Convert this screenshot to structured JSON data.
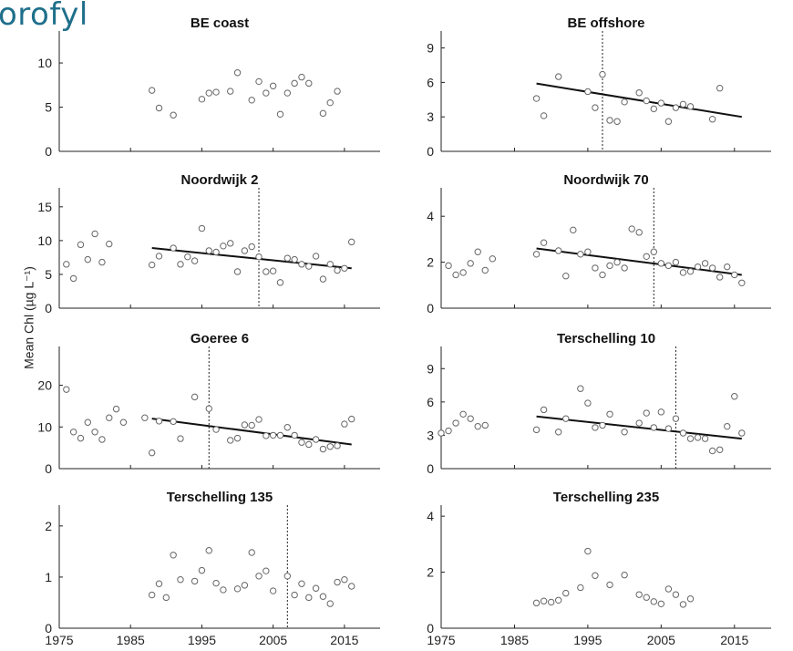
{
  "page_title": "orofyl",
  "ylabel": "Mean Chl (µg L⁻¹)",
  "chart_data": [
    {
      "type": "scatter",
      "title": "BE coast",
      "xlim": [
        1975,
        2020
      ],
      "ylim": [
        0,
        13
      ],
      "xticks": [
        1975,
        1985,
        1995,
        2005,
        2015
      ],
      "yticks": [
        0,
        5,
        10
      ],
      "points": [
        [
          1988,
          6.9
        ],
        [
          1989,
          4.9
        ],
        [
          1991,
          4.1
        ],
        [
          1995,
          5.9
        ],
        [
          1996,
          6.6
        ],
        [
          1997,
          6.7
        ],
        [
          1999,
          6.8
        ],
        [
          2000,
          8.9
        ],
        [
          2002,
          5.8
        ],
        [
          2003,
          7.9
        ],
        [
          2004,
          6.6
        ],
        [
          2005,
          7.4
        ],
        [
          2006,
          4.2
        ],
        [
          2007,
          6.6
        ],
        [
          2008,
          7.7
        ],
        [
          2009,
          8.4
        ],
        [
          2010,
          7.7
        ],
        [
          2012,
          4.3
        ],
        [
          2013,
          5.5
        ],
        [
          2014,
          6.8
        ]
      ],
      "trend": null,
      "breakpoint": null
    },
    {
      "type": "scatter",
      "title": "BE offshore",
      "xlim": [
        1975,
        2020
      ],
      "ylim": [
        0,
        10
      ],
      "xticks": [
        1975,
        1985,
        1995,
        2005,
        2015
      ],
      "yticks": [
        0,
        3,
        6,
        9
      ],
      "points": [
        [
          1988,
          4.6
        ],
        [
          1989,
          3.1
        ],
        [
          1991,
          6.5
        ],
        [
          1995,
          5.2
        ],
        [
          1996,
          3.8
        ],
        [
          1997,
          6.7
        ],
        [
          1998,
          2.7
        ],
        [
          1999,
          2.6
        ],
        [
          2000,
          4.3
        ],
        [
          2002,
          5.1
        ],
        [
          2003,
          4.4
        ],
        [
          2004,
          3.7
        ],
        [
          2005,
          4.2
        ],
        [
          2006,
          2.6
        ],
        [
          2007,
          3.8
        ],
        [
          2008,
          4.1
        ],
        [
          2009,
          3.9
        ],
        [
          2012,
          2.8
        ],
        [
          2013,
          5.5
        ]
      ],
      "trend": [
        [
          1988,
          5.9
        ],
        [
          2016,
          3.0
        ]
      ],
      "breakpoint": 1997
    },
    {
      "type": "scatter",
      "title": "Noordwijk 2",
      "xlim": [
        1975,
        2020
      ],
      "ylim": [
        0,
        17
      ],
      "xticks": [
        1975,
        1985,
        1995,
        2005,
        2015
      ],
      "yticks": [
        0,
        5,
        10,
        15
      ],
      "points": [
        [
          1976,
          6.5
        ],
        [
          1977,
          4.4
        ],
        [
          1978,
          9.4
        ],
        [
          1979,
          7.2
        ],
        [
          1980,
          11.0
        ],
        [
          1981,
          6.8
        ],
        [
          1982,
          9.5
        ],
        [
          1988,
          6.4
        ],
        [
          1989,
          7.7
        ],
        [
          1991,
          8.9
        ],
        [
          1992,
          6.5
        ],
        [
          1993,
          7.6
        ],
        [
          1994,
          7.0
        ],
        [
          1995,
          11.8
        ],
        [
          1996,
          8.5
        ],
        [
          1997,
          8.3
        ],
        [
          1998,
          9.2
        ],
        [
          1999,
          9.6
        ],
        [
          2000,
          5.4
        ],
        [
          2001,
          8.5
        ],
        [
          2002,
          9.1
        ],
        [
          2003,
          7.6
        ],
        [
          2004,
          5.4
        ],
        [
          2005,
          5.5
        ],
        [
          2006,
          3.8
        ],
        [
          2007,
          7.4
        ],
        [
          2008,
          7.2
        ],
        [
          2009,
          6.5
        ],
        [
          2010,
          6.2
        ],
        [
          2011,
          7.7
        ],
        [
          2012,
          4.3
        ],
        [
          2013,
          6.5
        ],
        [
          2014,
          5.6
        ],
        [
          2015,
          5.9
        ],
        [
          2016,
          9.8
        ]
      ],
      "trend": [
        [
          1988,
          8.9
        ],
        [
          2016,
          5.9
        ]
      ],
      "breakpoint": 2003
    },
    {
      "type": "scatter",
      "title": "Noordwijk 70",
      "xlim": [
        1975,
        2020
      ],
      "ylim": [
        0,
        5
      ],
      "xticks": [
        1975,
        1985,
        1995,
        2005,
        2015
      ],
      "yticks": [
        0,
        2,
        4
      ],
      "points": [
        [
          1976,
          1.85
        ],
        [
          1977,
          1.45
        ],
        [
          1978,
          1.55
        ],
        [
          1979,
          1.95
        ],
        [
          1980,
          2.45
        ],
        [
          1981,
          1.65
        ],
        [
          1982,
          2.15
        ],
        [
          1988,
          2.35
        ],
        [
          1989,
          2.85
        ],
        [
          1991,
          2.5
        ],
        [
          1992,
          1.4
        ],
        [
          1993,
          3.4
        ],
        [
          1994,
          2.35
        ],
        [
          1995,
          2.45
        ],
        [
          1996,
          1.75
        ],
        [
          1997,
          1.45
        ],
        [
          1998,
          1.85
        ],
        [
          1999,
          2.0
        ],
        [
          2000,
          1.75
        ],
        [
          2001,
          3.45
        ],
        [
          2002,
          3.3
        ],
        [
          2003,
          2.25
        ],
        [
          2004,
          2.45
        ],
        [
          2005,
          1.95
        ],
        [
          2006,
          1.85
        ],
        [
          2007,
          2.0
        ],
        [
          2008,
          1.55
        ],
        [
          2009,
          1.6
        ],
        [
          2010,
          1.8
        ],
        [
          2011,
          1.95
        ],
        [
          2012,
          1.75
        ],
        [
          2013,
          1.35
        ],
        [
          2014,
          1.8
        ],
        [
          2015,
          1.45
        ],
        [
          2016,
          1.1
        ]
      ],
      "trend": [
        [
          1988,
          2.6
        ],
        [
          2016,
          1.45
        ]
      ],
      "breakpoint": 2004
    },
    {
      "type": "scatter",
      "title": "Goeree 6",
      "xlim": [
        1975,
        2020
      ],
      "ylim": [
        0,
        28
      ],
      "xticks": [
        1975,
        1985,
        1995,
        2005,
        2015
      ],
      "yticks": [
        0,
        10,
        20
      ],
      "points": [
        [
          1976,
          19.0
        ],
        [
          1977,
          8.8
        ],
        [
          1978,
          7.3
        ],
        [
          1979,
          11.1
        ],
        [
          1980,
          8.8
        ],
        [
          1981,
          7.0
        ],
        [
          1982,
          12.2
        ],
        [
          1983,
          14.3
        ],
        [
          1984,
          11.1
        ],
        [
          1987,
          12.2
        ],
        [
          1988,
          3.8
        ],
        [
          1989,
          11.4
        ],
        [
          1991,
          11.3
        ],
        [
          1992,
          7.2
        ],
        [
          1994,
          17.2
        ],
        [
          1996,
          14.4
        ],
        [
          1997,
          9.4
        ],
        [
          1999,
          6.8
        ],
        [
          2000,
          7.3
        ],
        [
          2001,
          10.5
        ],
        [
          2002,
          10.4
        ],
        [
          2003,
          11.8
        ],
        [
          2004,
          7.9
        ],
        [
          2005,
          8.0
        ],
        [
          2006,
          8.0
        ],
        [
          2007,
          9.9
        ],
        [
          2008,
          8.0
        ],
        [
          2009,
          6.3
        ],
        [
          2010,
          5.8
        ],
        [
          2011,
          7.0
        ],
        [
          2012,
          4.7
        ],
        [
          2013,
          5.3
        ],
        [
          2014,
          5.5
        ],
        [
          2015,
          10.7
        ],
        [
          2016,
          11.9
        ]
      ],
      "trend": [
        [
          1988,
          12.0
        ],
        [
          2016,
          5.8
        ]
      ],
      "breakpoint": 1996
    },
    {
      "type": "scatter",
      "title": "Terschelling 10",
      "xlim": [
        1975,
        2020
      ],
      "ylim": [
        0,
        10.5
      ],
      "xticks": [
        1975,
        1985,
        1995,
        2005,
        2015
      ],
      "yticks": [
        0,
        3,
        6,
        9
      ],
      "points": [
        [
          1975,
          3.2
        ],
        [
          1976,
          3.4
        ],
        [
          1977,
          4.1
        ],
        [
          1978,
          4.9
        ],
        [
          1979,
          4.5
        ],
        [
          1980,
          3.8
        ],
        [
          1981,
          3.9
        ],
        [
          1988,
          3.5
        ],
        [
          1989,
          5.3
        ],
        [
          1991,
          3.3
        ],
        [
          1992,
          4.5
        ],
        [
          1994,
          7.2
        ],
        [
          1995,
          5.9
        ],
        [
          1996,
          3.7
        ],
        [
          1997,
          3.9
        ],
        [
          1998,
          4.9
        ],
        [
          2000,
          3.3
        ],
        [
          2002,
          4.1
        ],
        [
          2003,
          5.0
        ],
        [
          2004,
          3.7
        ],
        [
          2005,
          5.1
        ],
        [
          2006,
          3.6
        ],
        [
          2007,
          4.5
        ],
        [
          2008,
          3.2
        ],
        [
          2009,
          2.7
        ],
        [
          2010,
          2.8
        ],
        [
          2011,
          2.7
        ],
        [
          2012,
          1.6
        ],
        [
          2013,
          1.7
        ],
        [
          2014,
          3.8
        ],
        [
          2015,
          6.5
        ],
        [
          2016,
          3.2
        ]
      ],
      "trend": [
        [
          1988,
          4.7
        ],
        [
          2016,
          2.7
        ]
      ],
      "breakpoint": 2007
    },
    {
      "type": "scatter",
      "title": "Terschelling 135",
      "xlim": [
        1975,
        2020
      ],
      "ylim": [
        0,
        2.3
      ],
      "xticks": [
        1975,
        1985,
        1995,
        2005,
        2015
      ],
      "yticks": [
        0,
        1,
        2
      ],
      "points": [
        [
          1988,
          0.65
        ],
        [
          1989,
          0.87
        ],
        [
          1990,
          0.6
        ],
        [
          1991,
          1.43
        ],
        [
          1992,
          0.95
        ],
        [
          1994,
          0.92
        ],
        [
          1995,
          1.13
        ],
        [
          1996,
          1.52
        ],
        [
          1997,
          0.88
        ],
        [
          1998,
          0.75
        ],
        [
          2000,
          0.77
        ],
        [
          2001,
          0.84
        ],
        [
          2002,
          1.48
        ],
        [
          2003,
          1.02
        ],
        [
          2004,
          1.12
        ],
        [
          2005,
          0.73
        ],
        [
          2007,
          1.02
        ],
        [
          2008,
          0.65
        ],
        [
          2009,
          0.87
        ],
        [
          2010,
          0.6
        ],
        [
          2011,
          0.78
        ],
        [
          2012,
          0.62
        ],
        [
          2013,
          0.48
        ],
        [
          2014,
          0.9
        ],
        [
          2015,
          0.95
        ],
        [
          2016,
          0.82
        ]
      ],
      "trend": null,
      "breakpoint": 2007
    },
    {
      "type": "scatter",
      "title": "Terschelling 235",
      "xlim": [
        1975,
        2020
      ],
      "ylim": [
        0,
        4.2
      ],
      "xticks": [
        1975,
        1985,
        1995,
        2005,
        2015
      ],
      "yticks": [
        0,
        2,
        4
      ],
      "points": [
        [
          1988,
          0.9
        ],
        [
          1989,
          0.97
        ],
        [
          1990,
          0.93
        ],
        [
          1991,
          1.0
        ],
        [
          1992,
          1.25
        ],
        [
          1994,
          1.45
        ],
        [
          1995,
          2.75
        ],
        [
          1996,
          1.88
        ],
        [
          1998,
          1.55
        ],
        [
          2000,
          1.9
        ],
        [
          2002,
          1.2
        ],
        [
          2003,
          1.1
        ],
        [
          2004,
          0.95
        ],
        [
          2005,
          0.87
        ],
        [
          2006,
          1.4
        ],
        [
          2007,
          1.2
        ],
        [
          2008,
          0.85
        ],
        [
          2009,
          1.05
        ]
      ],
      "trend": null,
      "breakpoint": null
    }
  ]
}
